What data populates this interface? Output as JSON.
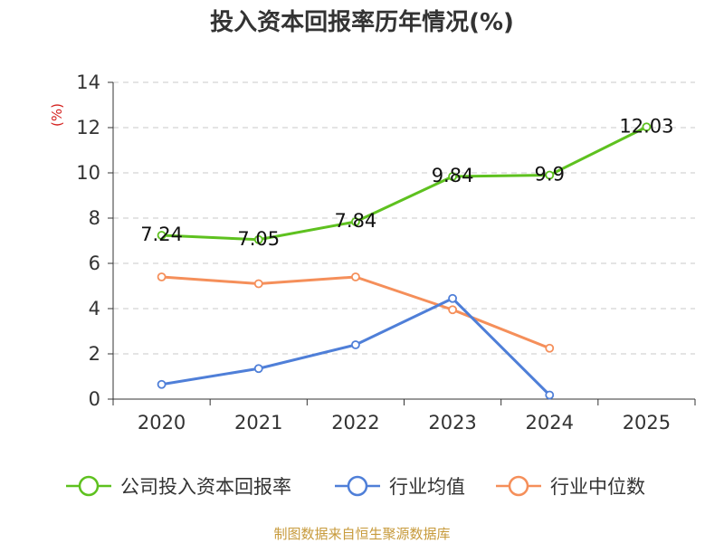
{
  "chart_data": {
    "type": "line",
    "title": "投入资本回报率历年情况(%)",
    "ylabel": "(%)",
    "xlabel": "",
    "categories": [
      "2020",
      "2021",
      "2022",
      "2023",
      "2024",
      "2025"
    ],
    "ylim": [
      0,
      14
    ],
    "yticks": [
      0,
      2,
      4,
      6,
      8,
      10,
      12,
      14
    ],
    "grid": true,
    "legend_position": "bottom",
    "series": [
      {
        "name": "公司投入资本回报率",
        "color": "#5ec11f",
        "values": [
          7.24,
          7.05,
          7.84,
          9.84,
          9.9,
          12.03
        ],
        "labels": [
          "7.24",
          "7.05",
          "7.84",
          "9.84",
          "9.9",
          "12.03"
        ],
        "show_labels": true
      },
      {
        "name": "行业均值",
        "color": "#4f7fd8",
        "values": [
          0.65,
          1.35,
          2.4,
          4.45,
          0.18,
          null
        ],
        "show_labels": false
      },
      {
        "name": "行业中位数",
        "color": "#f58f5a",
        "values": [
          5.4,
          5.1,
          5.4,
          3.95,
          2.25,
          null
        ],
        "show_labels": false
      }
    ],
    "source": "制图数据来自恒生聚源数据库"
  }
}
